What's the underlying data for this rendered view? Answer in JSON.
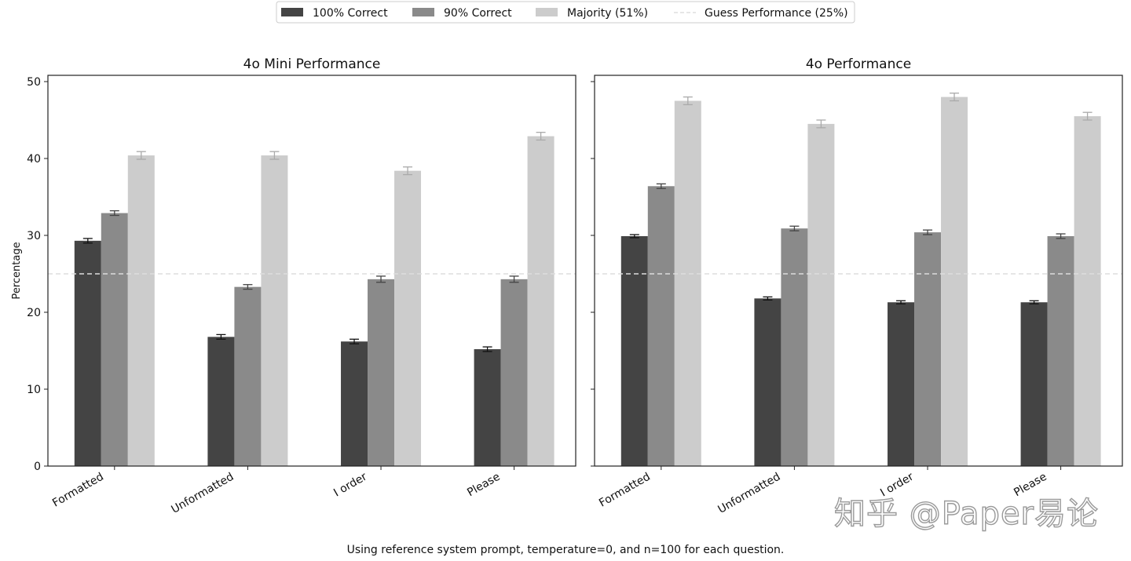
{
  "chart_data": {
    "type": "bar",
    "shared": {
      "categories": [
        "Formatted",
        "Unformatted",
        "I order",
        "Please"
      ],
      "ylabel": "Percentage",
      "ylim": [
        0,
        50
      ],
      "yticks": [
        0,
        10,
        20,
        30,
        40,
        50
      ],
      "reference_line": {
        "label": "Guess Performance (25%)",
        "value": 25
      },
      "series_meta": [
        {
          "name": "100% Correct",
          "color": "#444444"
        },
        {
          "name": "90% Correct",
          "color": "#8a8a8a"
        },
        {
          "name": "Majority (51%)",
          "color": "#cccccc"
        }
      ],
      "reference_color": "#dddddd",
      "error_colors": [
        "#111111",
        "#444444",
        "#aaaaaa"
      ],
      "caption": "Using reference system prompt, temperature=0, and n=100 for each question."
    },
    "panels": [
      {
        "title": "4o Mini Performance",
        "series": [
          {
            "name": "100% Correct",
            "values": [
              29.3,
              16.8,
              16.2,
              15.2
            ],
            "errors": [
              0.3,
              0.3,
              0.3,
              0.3
            ]
          },
          {
            "name": "90% Correct",
            "values": [
              32.9,
              23.3,
              24.3,
              24.3
            ],
            "errors": [
              0.3,
              0.3,
              0.4,
              0.4
            ]
          },
          {
            "name": "Majority (51%)",
            "values": [
              40.4,
              40.4,
              38.4,
              42.9
            ],
            "errors": [
              0.5,
              0.5,
              0.5,
              0.5
            ]
          }
        ]
      },
      {
        "title": "4o Performance",
        "series": [
          {
            "name": "100% Correct",
            "values": [
              29.9,
              21.8,
              21.3,
              21.3
            ],
            "errors": [
              0.2,
              0.2,
              0.2,
              0.2
            ]
          },
          {
            "name": "90% Correct",
            "values": [
              36.4,
              30.9,
              30.4,
              29.9
            ],
            "errors": [
              0.3,
              0.3,
              0.3,
              0.3
            ]
          },
          {
            "name": "Majority (51%)",
            "values": [
              47.5,
              44.5,
              48.0,
              45.5
            ],
            "errors": [
              0.5,
              0.5,
              0.5,
              0.5
            ]
          }
        ]
      }
    ]
  },
  "watermark": "知乎 @Paper易论"
}
